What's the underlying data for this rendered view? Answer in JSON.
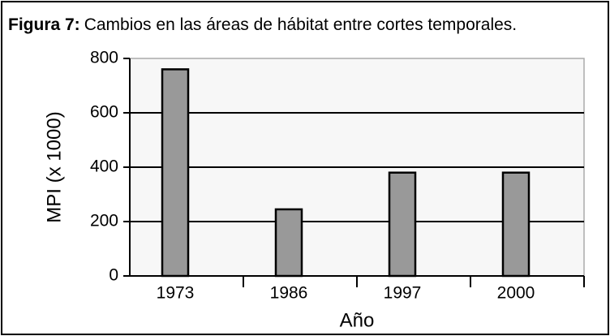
{
  "chart_data": {
    "type": "bar",
    "label": "Figura 7:",
    "title": "Cambios en las áreas de hábitat entre cortes temporales.",
    "x_label": "Año",
    "y_label": "MPI (x 1000)",
    "categories": [
      "1973",
      "1986",
      "1997",
      "2000"
    ],
    "values": [
      760,
      245,
      380,
      380
    ],
    "color": "#999999",
    "ylim": [
      0,
      800
    ],
    "yticks": [
      0,
      200,
      400,
      600,
      800
    ],
    "grid": true
  }
}
